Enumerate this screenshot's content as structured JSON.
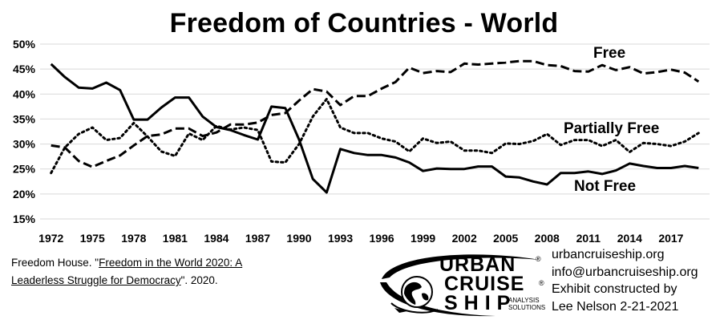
{
  "chart_data": {
    "type": "line",
    "title": "Freedom of Countries - World",
    "ylim": [
      15,
      50
    ],
    "y_ticks": [
      "50%",
      "45%",
      "40%",
      "35%",
      "30%",
      "25%",
      "20%",
      "15%"
    ],
    "y_tick_values": [
      50,
      45,
      40,
      35,
      30,
      25,
      20,
      15
    ],
    "xlim": [
      1972,
      2020
    ],
    "x_ticks": [
      "1972",
      "1975",
      "1978",
      "1981",
      "1984",
      "1987",
      "1990",
      "1993",
      "1996",
      "1999",
      "2002",
      "2005",
      "2008",
      "2011",
      "2014",
      "2017"
    ],
    "x_tick_values": [
      1972,
      1975,
      1978,
      1981,
      1984,
      1987,
      1990,
      1993,
      1996,
      1999,
      2002,
      2005,
      2008,
      2011,
      2014,
      2017
    ],
    "grid": "horizontal",
    "x": [
      1972,
      1973,
      1974,
      1975,
      1976,
      1977,
      1978,
      1979,
      1980,
      1981,
      1982,
      1983,
      1984,
      1985,
      1986,
      1987,
      1988,
      1989,
      1990,
      1991,
      1992,
      1993,
      1994,
      1995,
      1996,
      1997,
      1998,
      1999,
      2000,
      2001,
      2002,
      2003,
      2004,
      2005,
      2006,
      2007,
      2008,
      2009,
      2010,
      2011,
      2012,
      2013,
      2014,
      2015,
      2016,
      2017,
      2018,
      2019
    ],
    "series": [
      {
        "name": "Free",
        "style": "dashed",
        "values": [
          29.7,
          29.3,
          26.6,
          25.4,
          26.6,
          27.7,
          29.7,
          31.6,
          31.9,
          33.1,
          33.1,
          31.6,
          32.3,
          33.9,
          33.9,
          34.3,
          35.8,
          36.2,
          38.7,
          41.0,
          40.5,
          37.8,
          39.6,
          39.6,
          41.1,
          42.4,
          45.3,
          44.2,
          44.6,
          44.4,
          46.1,
          45.9,
          46.1,
          46.3,
          46.6,
          46.6,
          45.8,
          45.6,
          44.6,
          44.5,
          45.8,
          44.8,
          45.4,
          44.1,
          44.4,
          44.9,
          44.3,
          42.5
        ]
      },
      {
        "name": "Partially Free",
        "style": "dotted",
        "values": [
          24.2,
          29.3,
          32.0,
          33.3,
          30.8,
          31.2,
          34.2,
          31.5,
          28.5,
          27.6,
          32.1,
          30.8,
          33.6,
          32.9,
          33.3,
          32.8,
          26.5,
          26.3,
          30.0,
          35.5,
          39.0,
          33.3,
          32.2,
          32.2,
          31.1,
          30.5,
          28.5,
          31.1,
          30.2,
          30.5,
          28.7,
          28.7,
          28.2,
          30.1,
          30.0,
          30.6,
          32.0,
          29.8,
          30.8,
          30.8,
          29.6,
          30.8,
          28.4,
          30.2,
          30.0,
          29.6,
          30.5,
          32.2
        ]
      },
      {
        "name": "Not Free",
        "style": "solid",
        "values": [
          46.0,
          43.4,
          41.3,
          41.1,
          42.3,
          40.8,
          34.9,
          34.9,
          37.3,
          39.3,
          39.3,
          35.5,
          33.4,
          32.8,
          31.8,
          30.9,
          37.5,
          37.2,
          30.9,
          23.0,
          20.3,
          29.0,
          28.2,
          27.8,
          27.8,
          27.3,
          26.3,
          24.6,
          25.1,
          25.0,
          25.0,
          25.5,
          25.5,
          23.5,
          23.3,
          22.5,
          21.9,
          24.2,
          24.2,
          24.5,
          24.0,
          24.7,
          26.1,
          25.6,
          25.2,
          25.2,
          25.6,
          25.2
        ]
      }
    ]
  },
  "citation": {
    "prefix": "Freedom House. \"",
    "link": "Freedom in the World 2020: A Leaderless Struggle for Democracy",
    "suffix": "\". 2020."
  },
  "logo": {
    "line1": "URBAN",
    "line2": "CRUISE",
    "line3": "SHIP",
    "sub1": "ANALYSIS",
    "sub2": "SOLUTIONS",
    "reg": "®"
  },
  "contact": {
    "website": "urbancruiseship.org",
    "email": "info@urbancruiseship.org",
    "credit": "Exhibit constructed by",
    "author_date": "Lee Nelson 2-21-2021"
  },
  "icons": {
    "logo_graphic": "globe-ship-logo-icon"
  }
}
